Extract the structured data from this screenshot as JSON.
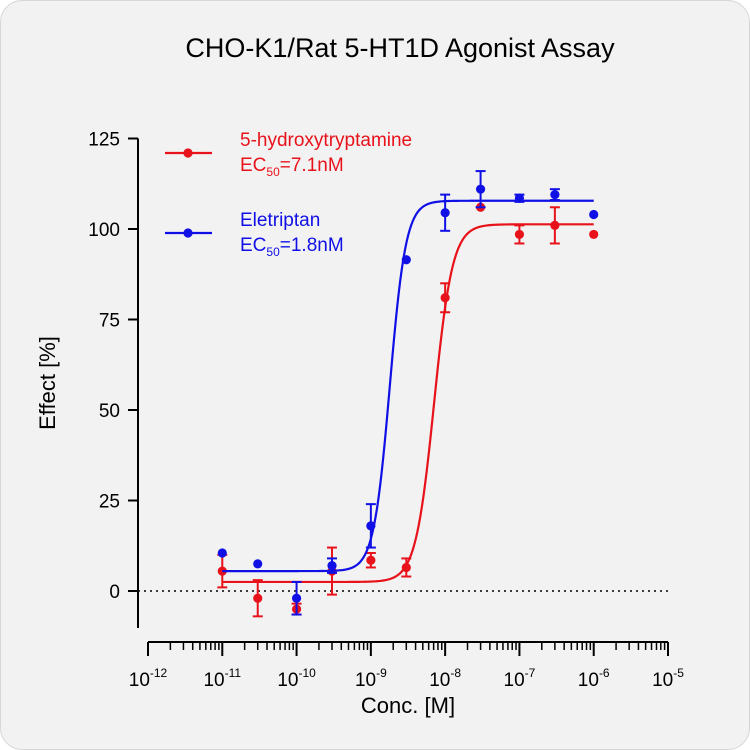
{
  "chart_data": {
    "type": "scatter",
    "title": "CHO-K1/Rat 5-HT1D Agonist Assay",
    "xlabel": "Conc. [M]",
    "ylabel": "Effect  [%]",
    "x_scale": "log",
    "xlim": [
      1e-12,
      1e-05
    ],
    "ylim": [
      -10,
      125
    ],
    "y_ticks": [
      0,
      25,
      50,
      75,
      100,
      125
    ],
    "x_ticks": [
      {
        "base": "10",
        "exp": "-12",
        "value": 1e-12
      },
      {
        "base": "10",
        "exp": "-11",
        "value": 1e-11
      },
      {
        "base": "10",
        "exp": "-10",
        "value": 1e-10
      },
      {
        "base": "10",
        "exp": "-9",
        "value": 1e-09
      },
      {
        "base": "10",
        "exp": "-8",
        "value": 1e-08
      },
      {
        "base": "10",
        "exp": "-7",
        "value": 1e-07
      },
      {
        "base": "10",
        "exp": "-6",
        "value": 1e-06
      },
      {
        "base": "10",
        "exp": "-5",
        "value": 1e-05
      }
    ],
    "reference_line_y": 0,
    "legend_position": "top-left",
    "series": [
      {
        "name": "5-hydroxytryptamine",
        "ec50_label": {
          "prefix": "EC",
          "sub": "50",
          "suffix": "=7.1nM"
        },
        "color": "#e8121b",
        "points": [
          {
            "x": 1e-11,
            "y": 5.5,
            "err": 4.5
          },
          {
            "x": 3e-11,
            "y": -2.0,
            "err": 5.0
          },
          {
            "x": 1e-10,
            "y": -5.0,
            "err": 1.5
          },
          {
            "x": 3e-10,
            "y": 5.5,
            "err": 6.5
          },
          {
            "x": 1e-09,
            "y": 8.5,
            "err": 2.0
          },
          {
            "x": 3e-09,
            "y": 6.5,
            "err": 2.5
          },
          {
            "x": 1e-08,
            "y": 81.0,
            "err": 4.0
          },
          {
            "x": 3e-08,
            "y": 106.0,
            "err": 0
          },
          {
            "x": 1e-07,
            "y": 98.5,
            "err": 2.5
          },
          {
            "x": 3e-07,
            "y": 101.0,
            "err": 5.0
          },
          {
            "x": 1e-06,
            "y": 98.5,
            "err": 0
          }
        ],
        "fit": {
          "bottom": 2.5,
          "top": 101.3,
          "ec50": 7.1e-09,
          "hill": 3.5
        }
      },
      {
        "name": "Eletriptan",
        "ec50_label": {
          "prefix": "EC",
          "sub": "50",
          "suffix": "=1.8nM"
        },
        "color": "#1010e6",
        "points": [
          {
            "x": 1e-11,
            "y": 10.5,
            "err": 0
          },
          {
            "x": 3e-11,
            "y": 7.5,
            "err": 0
          },
          {
            "x": 1e-10,
            "y": -2.0,
            "err": 4.5
          },
          {
            "x": 3e-10,
            "y": 7.0,
            "err": 2.0
          },
          {
            "x": 1e-09,
            "y": 18.0,
            "err": 6.0
          },
          {
            "x": 3e-09,
            "y": 91.5,
            "err": 0
          },
          {
            "x": 1e-08,
            "y": 104.5,
            "err": 5.0
          },
          {
            "x": 3e-08,
            "y": 111.0,
            "err": 5.0
          },
          {
            "x": 1e-07,
            "y": 108.5,
            "err": 1.0
          },
          {
            "x": 3e-07,
            "y": 109.5,
            "err": 1.5
          },
          {
            "x": 1e-06,
            "y": 104.0,
            "err": 0
          }
        ],
        "fit": {
          "bottom": 5.5,
          "top": 107.8,
          "ec50": 1.8e-09,
          "hill": 4.0
        }
      }
    ]
  }
}
